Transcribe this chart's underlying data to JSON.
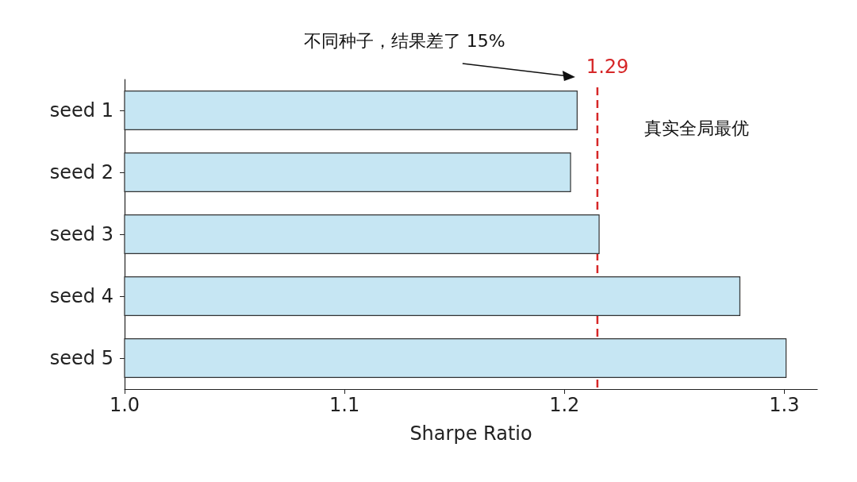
{
  "chart_data": {
    "type": "bar",
    "orientation": "horizontal",
    "xlabel": "Sharpe Ratio",
    "categories": [
      "seed 1",
      "seed 2",
      "seed 3",
      "seed 4",
      "seed 5"
    ],
    "values": [
      1.206,
      1.203,
      1.216,
      1.28,
      1.301
    ],
    "color": "#c6e6f3",
    "xlim": [
      1.0,
      1.315
    ],
    "xticks": [
      {
        "value": 1.0,
        "label": "1.0"
      },
      {
        "value": 1.1,
        "label": "1.1"
      },
      {
        "value": 1.2,
        "label": "1.2"
      },
      {
        "value": 1.3,
        "label": "1.3"
      }
    ],
    "ref_lines": [
      {
        "axis": "x",
        "value": 1.215,
        "color": "#d62728",
        "line_style": "dashed"
      }
    ],
    "annotations": [
      "不同种子，结果差了 15%",
      "真实全局最优",
      "1.29"
    ],
    "grid": false
  }
}
